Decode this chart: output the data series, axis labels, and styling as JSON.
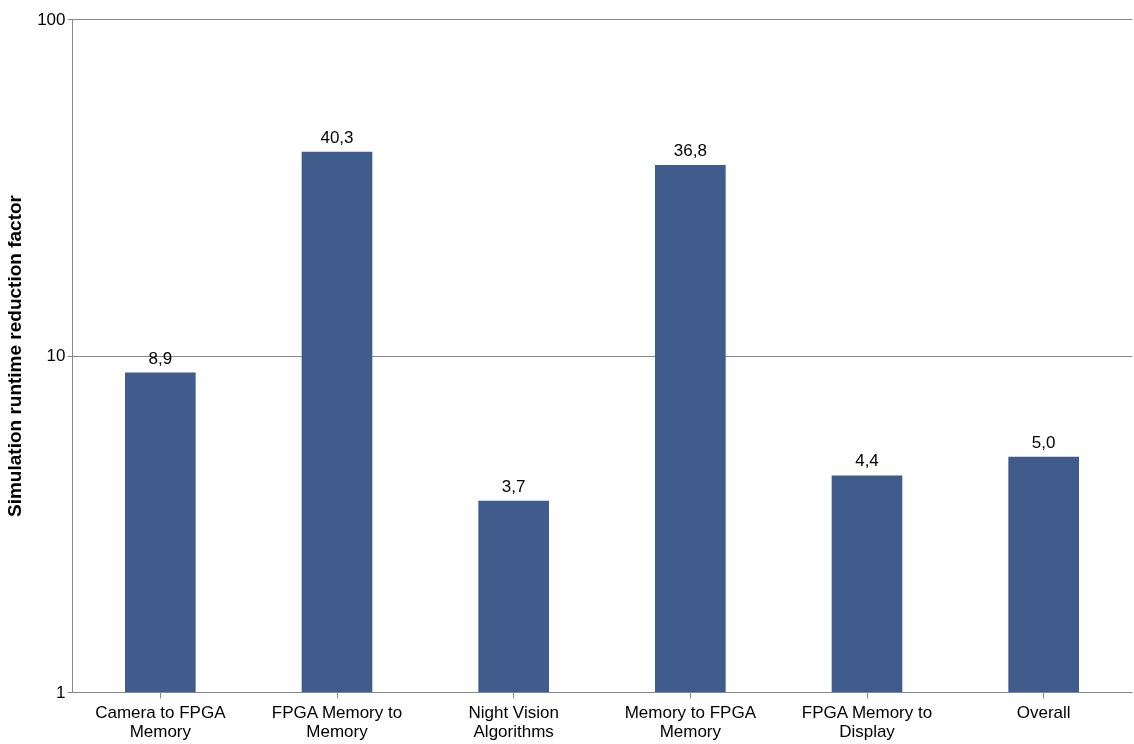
{
  "chart_data": {
    "type": "bar",
    "ylabel": "Simulation runtime reduction factor",
    "categories": [
      "Camera to FPGA Memory",
      "FPGA Memory to Memory",
      "Night Vision Algorithms",
      "Memory to FPGA Memory",
      "FPGA Memory to Display",
      "Overall"
    ],
    "values": [
      8.9,
      40.3,
      3.7,
      36.8,
      4.4,
      5.0
    ],
    "value_labels": [
      "8,9",
      "40,3",
      "3,7",
      "36,8",
      "4,4",
      "5,0"
    ],
    "color": "#3f5c8d",
    "log": true,
    "ylim": [
      1,
      100
    ],
    "yticks": [
      1,
      10,
      100
    ],
    "grid": "y"
  }
}
